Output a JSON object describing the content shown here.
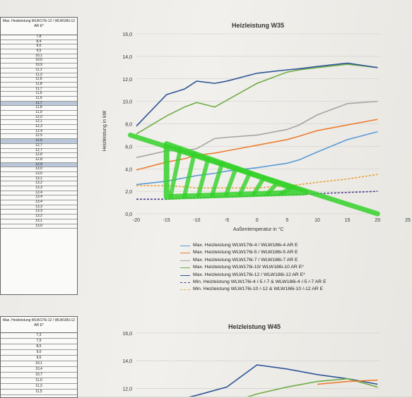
{
  "left_table": {
    "header": "Max. Heizleistung WLW176i-12 / WLW186i-12 AR E*",
    "rows": [
      "7,8",
      "8,4",
      "9,0",
      "9,5",
      "10,1",
      "10,6",
      "10,9",
      "11,1",
      "11,3",
      "11,6",
      "11,8",
      "11,7",
      "11,6",
      "11,6",
      "11,7",
      "11,8",
      "11,9",
      "12,0",
      "12,1",
      "12,3",
      "12,4",
      "12,5",
      "12,6",
      "12,7",
      "12,7",
      "12,8",
      "12,8",
      "12,9",
      "13,0",
      "13,0",
      "13,1",
      "13,2",
      "13,3",
      "13,4",
      "13,4",
      "13,4",
      "13,3",
      "13,3",
      "13,2",
      "13,1",
      "13,0"
    ],
    "highlight_rows": [
      14,
      22,
      27
    ]
  },
  "left_table2": {
    "header": "Max. Heizleistung WLW176i-12 / WLW186i-12 AR E*",
    "rows": [
      "7,3",
      "7,9",
      "8,5",
      "9,0",
      "9,6",
      "10,1",
      "10,4",
      "10,7",
      "11,0",
      "11,3",
      "11,5"
    ]
  },
  "chart_data": [
    {
      "type": "line",
      "title": "Heizleistung W35",
      "xlabel": "Außentemperatur in °C",
      "ylabel": "Heizleistung in kW",
      "xlim": [
        -20,
        25
      ],
      "ylim": [
        0,
        16
      ],
      "x_ticks": [
        "-20",
        "-15",
        "-10",
        "-5",
        "0",
        "5",
        "10",
        "15",
        "20",
        "25"
      ],
      "y_ticks": [
        "0,0",
        "2,0",
        "4,0",
        "6,0",
        "8,0",
        "10,0",
        "12,0",
        "14,0",
        "16,0"
      ],
      "x": [
        -20,
        -15,
        -12,
        -10,
        -7,
        -5,
        0,
        5,
        7,
        10,
        15,
        20
      ],
      "series": [
        {
          "name": "Max. Heizleistung WLW176i-4 / WLW186i-4 AR E",
          "color": "#5b9bd5",
          "dash": false,
          "values": [
            2.6,
            2.9,
            3.2,
            3.4,
            3.6,
            3.8,
            4.1,
            4.5,
            4.8,
            5.5,
            6.6,
            7.3
          ]
        },
        {
          "name": "Max. Heizleistung WLW176i-5 / WLW186i-5 AR E",
          "color": "#ed7d31",
          "dash": false,
          "values": [
            3.9,
            4.6,
            4.9,
            5.2,
            5.4,
            5.6,
            6.1,
            6.6,
            6.9,
            7.4,
            7.9,
            8.4
          ]
        },
        {
          "name": "Max. Heizleistung WLW176i-7 / WLW186i-7 AR E",
          "color": "#a5a5a5",
          "dash": false,
          "values": [
            5.0,
            5.6,
            5.6,
            5.8,
            6.7,
            6.8,
            7.0,
            7.5,
            7.9,
            8.8,
            9.8,
            10.0
          ]
        },
        {
          "name": "Max. Heizleistung WLW176i-10/ WLW186i-10 AR E*",
          "color": "#70ad47",
          "dash": false,
          "values": [
            7.1,
            8.7,
            9.5,
            9.9,
            9.5,
            10.1,
            11.6,
            12.6,
            12.8,
            13.0,
            13.3,
            13.0
          ]
        },
        {
          "name": "Max. Heizleistung WLW176i-12 / WLW186i-12 AR E*",
          "color": "#2f5597",
          "dash": false,
          "values": [
            7.8,
            10.6,
            11.1,
            11.8,
            11.6,
            11.8,
            12.5,
            12.8,
            12.9,
            13.1,
            13.4,
            13.0
          ]
        },
        {
          "name": "Min. Heizleistung WLW176i-4 /-5 /-7 & WLW186i-4 /-5 /-7 AR E",
          "color": "#4b3d8f",
          "dash": true,
          "values": [
            1.3,
            1.3,
            1.4,
            1.4,
            1.5,
            1.5,
            1.6,
            1.7,
            1.7,
            1.8,
            1.9,
            2.0
          ]
        },
        {
          "name": "Min. Heizleistung WLW176i-10 /-12 & WLW186i-10 /-12 AR E",
          "color": "#e8a33d",
          "dash": true,
          "values": [
            2.5,
            2.5,
            2.4,
            2.3,
            2.3,
            2.3,
            2.3,
            2.5,
            2.6,
            2.8,
            3.1,
            3.5
          ]
        }
      ],
      "legend_position": "bottom",
      "grid": "horizontal",
      "annotation": {
        "color": "#35d12a",
        "triangle": [
          [
            -15,
            6.2
          ],
          [
            -15,
            1.5
          ],
          [
            8,
            1.9
          ]
        ],
        "line_from": [
          -21,
          7.0
        ],
        "line_to": [
          20,
          0.0
        ],
        "hatch_stripes": 9
      }
    },
    {
      "type": "line",
      "title": "Heizleistung W45",
      "ylim_visible": [
        11,
        16
      ],
      "y_ticks": [
        "12,0",
        "14,0",
        "16,0"
      ],
      "x": [
        -20,
        -15,
        -12,
        -10,
        -5,
        0,
        5,
        10,
        15,
        20
      ],
      "series": [
        {
          "color": "#2f5597",
          "values": [
            null,
            null,
            11.3,
            11.5,
            12.1,
            13.7,
            13.4,
            13.0,
            12.7,
            12.3
          ]
        },
        {
          "color": "#70ad47",
          "values": [
            null,
            null,
            null,
            null,
            10.9,
            11.6,
            12.1,
            12.5,
            12.7,
            12.1
          ]
        },
        {
          "color": "#ed7d31",
          "values": [
            null,
            null,
            null,
            null,
            null,
            null,
            null,
            12.3,
            12.5,
            12.6
          ]
        }
      ]
    }
  ]
}
